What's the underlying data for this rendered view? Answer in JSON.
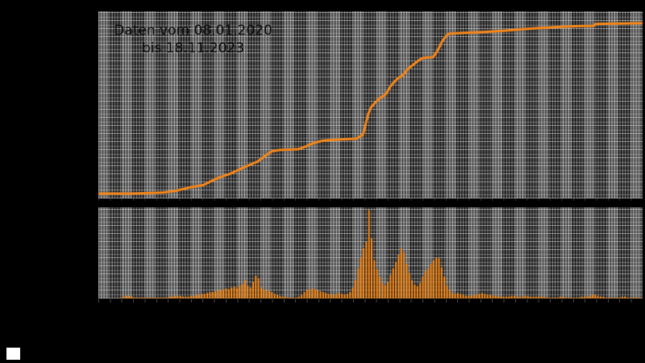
{
  "figure": {
    "title_line1": "Daten vom 08.01.2020",
    "title_line2": "bis 18.11.2023",
    "colors": {
      "background": "#000000",
      "line": "#f28418",
      "bars": "#ef8414",
      "band_light": "#6a6a6a",
      "band_dark": "#2b2b2b",
      "grid": "#ffffff",
      "title_text": "#0b0b0b",
      "corner_square": "#ffffff"
    }
  },
  "chart_data": [
    {
      "type": "line",
      "title": "Daten vom 08.01.2020 bis 18.11.2023",
      "x_range": [
        "08.01.2020",
        "18.11.2023"
      ],
      "xlabel": "",
      "ylabel": "",
      "ylim": [
        0,
        1
      ],
      "axis_note": "tick labels rendered black on black background - not visible; values normalized 0-1",
      "grid": "on",
      "legend": "none",
      "points": [
        [
          0.0,
          0.026
        ],
        [
          0.06,
          0.026
        ],
        [
          0.089,
          0.028
        ],
        [
          0.12,
          0.032
        ],
        [
          0.141,
          0.04
        ],
        [
          0.17,
          0.06
        ],
        [
          0.193,
          0.072
        ],
        [
          0.22,
          0.11
        ],
        [
          0.244,
          0.134
        ],
        [
          0.27,
          0.17
        ],
        [
          0.293,
          0.198
        ],
        [
          0.31,
          0.235
        ],
        [
          0.319,
          0.252
        ],
        [
          0.333,
          0.259
        ],
        [
          0.355,
          0.261
        ],
        [
          0.367,
          0.263
        ],
        [
          0.38,
          0.276
        ],
        [
          0.387,
          0.286
        ],
        [
          0.4,
          0.3
        ],
        [
          0.415,
          0.31
        ],
        [
          0.445,
          0.315
        ],
        [
          0.474,
          0.319
        ],
        [
          0.486,
          0.34
        ],
        [
          0.49,
          0.38
        ],
        [
          0.493,
          0.42
        ],
        [
          0.497,
          0.46
        ],
        [
          0.501,
          0.487
        ],
        [
          0.508,
          0.51
        ],
        [
          0.516,
          0.534
        ],
        [
          0.522,
          0.545
        ],
        [
          0.526,
          0.552
        ],
        [
          0.53,
          0.565
        ],
        [
          0.537,
          0.6
        ],
        [
          0.545,
          0.627
        ],
        [
          0.552,
          0.645
        ],
        [
          0.56,
          0.66
        ],
        [
          0.568,
          0.69
        ],
        [
          0.579,
          0.716
        ],
        [
          0.588,
          0.736
        ],
        [
          0.594,
          0.748
        ],
        [
          0.602,
          0.752
        ],
        [
          0.61,
          0.754
        ],
        [
          0.615,
          0.756
        ],
        [
          0.619,
          0.77
        ],
        [
          0.625,
          0.8
        ],
        [
          0.632,
          0.84
        ],
        [
          0.639,
          0.868
        ],
        [
          0.644,
          0.88
        ],
        [
          0.66,
          0.883
        ],
        [
          0.708,
          0.889
        ],
        [
          0.75,
          0.897
        ],
        [
          0.782,
          0.905
        ],
        [
          0.82,
          0.912
        ],
        [
          0.856,
          0.918
        ],
        [
          0.89,
          0.921
        ],
        [
          0.91,
          0.922
        ],
        [
          0.913,
          0.932
        ],
        [
          0.95,
          0.934
        ],
        [
          1.0,
          0.936
        ]
      ]
    },
    {
      "type": "bar",
      "x_range": [
        "08.01.2020",
        "18.11.2023"
      ],
      "xlabel": "",
      "ylabel": "",
      "ylim": [
        0,
        1
      ],
      "axis_note": "tick labels rendered black on black background - not visible; weekly bars, heights normalized 0-1",
      "grid": "on",
      "legend": "none",
      "values": [
        0,
        0,
        0,
        0,
        0,
        0,
        0,
        0,
        0.01,
        0.02,
        0.03,
        0.03,
        0.02,
        0.01,
        0.01,
        0.01,
        0.01,
        0.01,
        0.01,
        0.01,
        0.01,
        0.01,
        0.01,
        0.01,
        0.01,
        0.01,
        0.02,
        0.02,
        0.03,
        0.03,
        0.03,
        0.02,
        0.02,
        0.02,
        0.03,
        0.03,
        0.04,
        0.04,
        0.05,
        0.05,
        0.06,
        0.07,
        0.07,
        0.08,
        0.09,
        0.09,
        0.1,
        0.11,
        0.1,
        0.12,
        0.13,
        0.11,
        0.14,
        0.16,
        0.2,
        0.14,
        0.12,
        0.18,
        0.25,
        0.22,
        0.12,
        0.1,
        0.09,
        0.08,
        0.07,
        0.05,
        0.04,
        0.03,
        0.02,
        0.02,
        0.01,
        0.01,
        0.01,
        0.01,
        0.02,
        0.04,
        0.07,
        0.09,
        0.1,
        0.11,
        0.1,
        0.09,
        0.08,
        0.07,
        0.06,
        0.05,
        0.05,
        0.04,
        0.05,
        0.06,
        0.05,
        0.04,
        0.05,
        0.07,
        0.12,
        0.2,
        0.33,
        0.45,
        0.55,
        0.62,
        0.97,
        0.66,
        0.42,
        0.32,
        0.24,
        0.17,
        0.14,
        0.18,
        0.26,
        0.33,
        0.4,
        0.48,
        0.55,
        0.5,
        0.38,
        0.28,
        0.2,
        0.15,
        0.13,
        0.17,
        0.24,
        0.3,
        0.33,
        0.38,
        0.42,
        0.45,
        0.44,
        0.34,
        0.24,
        0.14,
        0.09,
        0.06,
        0.05,
        0.06,
        0.05,
        0.04,
        0.03,
        0.03,
        0.03,
        0.04,
        0.04,
        0.05,
        0.06,
        0.05,
        0.04,
        0.04,
        0.03,
        0.03,
        0.03,
        0.02,
        0.02,
        0.02,
        0.02,
        0.03,
        0.03,
        0.02,
        0.02,
        0.02,
        0.03,
        0.03,
        0.02,
        0.02,
        0.02,
        0.02,
        0.02,
        0.02,
        0.01,
        0.01,
        0.01,
        0.01,
        0.01,
        0.02,
        0.02,
        0.01,
        0.01,
        0.01,
        0.01,
        0.01,
        0.01,
        0.02,
        0.02,
        0.02,
        0.03,
        0.04,
        0.04,
        0.03,
        0.02,
        0.02,
        0.01,
        0.01,
        0.01,
        0.01,
        0.01,
        0.01,
        0.02,
        0.02,
        0.01,
        0.01,
        0.01,
        0.01,
        0.01,
        0.01
      ]
    }
  ]
}
